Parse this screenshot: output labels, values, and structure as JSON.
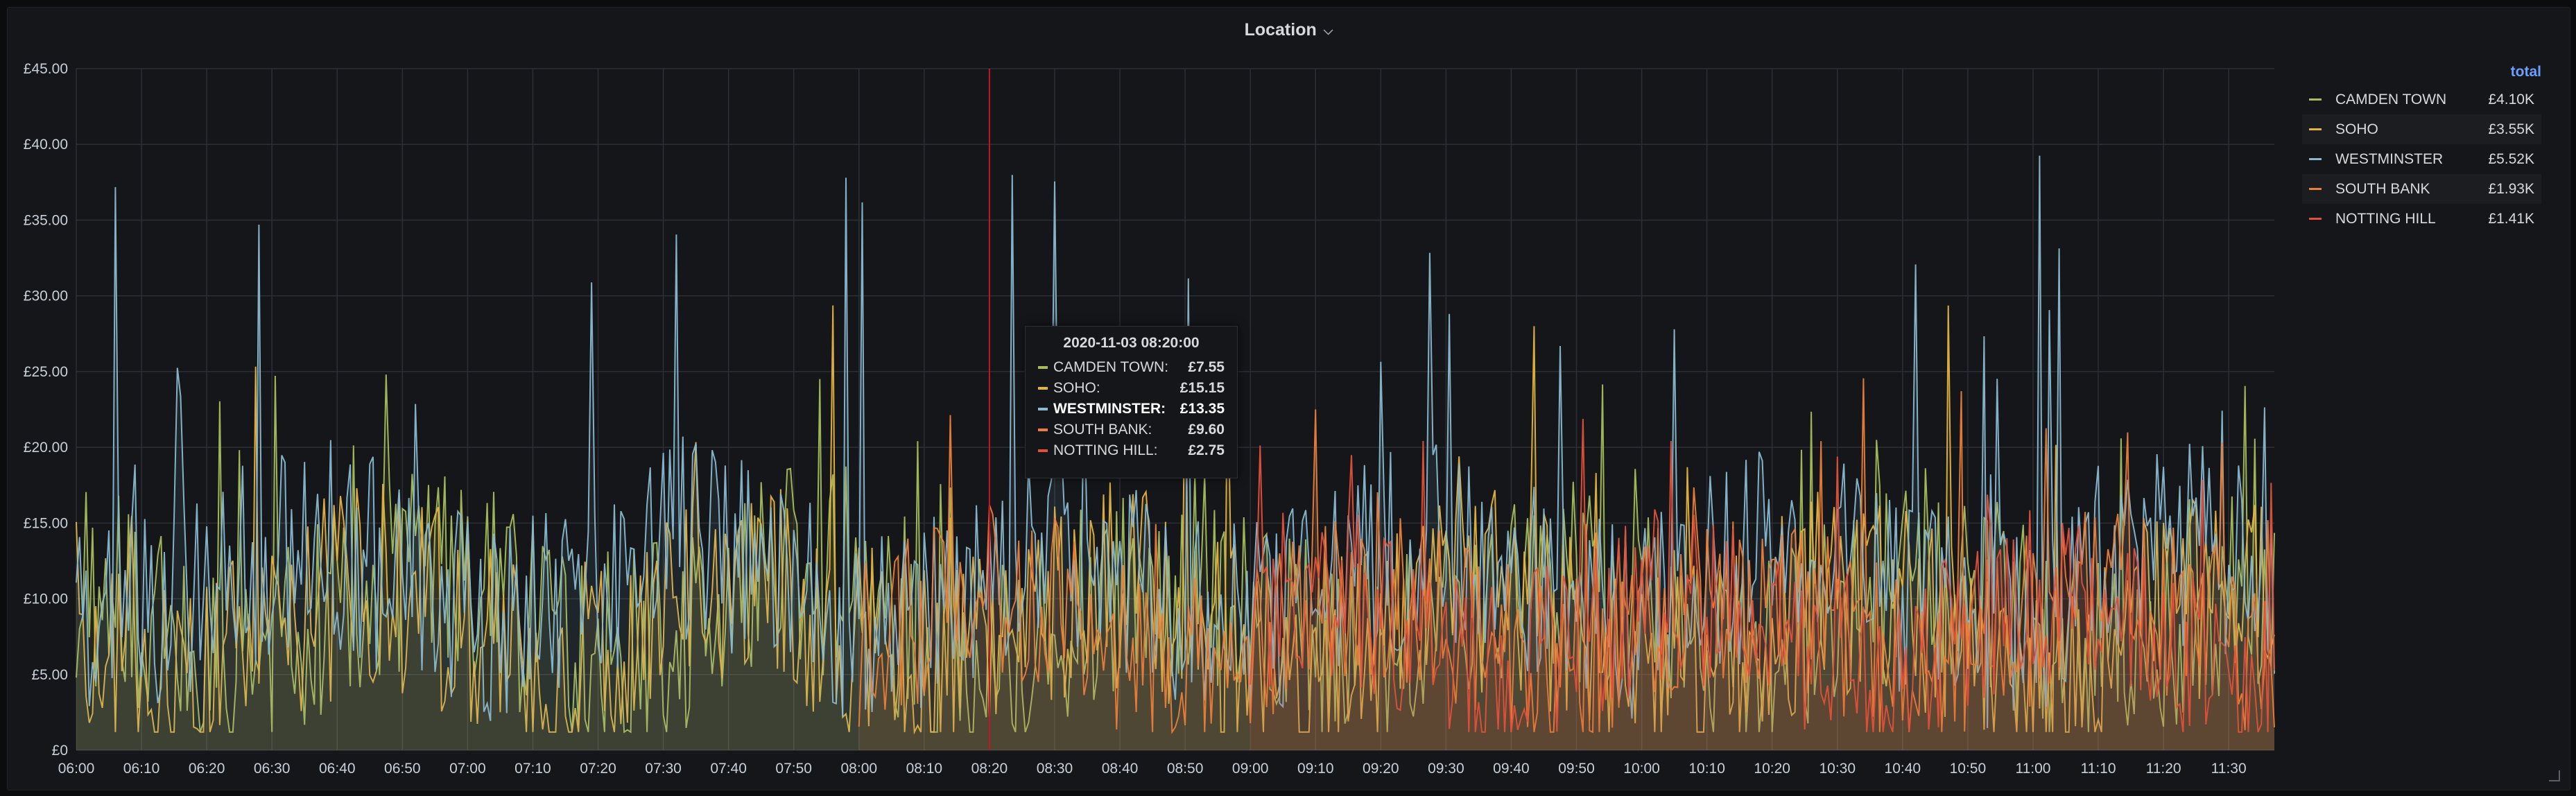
{
  "panel": {
    "title": "Location"
  },
  "tooltip": {
    "time": "2020-11-03 08:20:00",
    "rows": [
      {
        "name": "CAMDEN TOWN:",
        "value": "£7.55",
        "color": "#a6bd5d",
        "highlight": false
      },
      {
        "name": "SOHO:",
        "value": "£15.15",
        "color": "#e3b341",
        "highlight": false
      },
      {
        "name": "WESTMINSTER:",
        "value": "£13.35",
        "color": "#8ab8cf",
        "highlight": true
      },
      {
        "name": "SOUTH BANK:",
        "value": "£9.60",
        "color": "#ea7e3a",
        "highlight": false
      },
      {
        "name": "NOTTING HILL:",
        "value": "£2.75",
        "color": "#e0513b",
        "highlight": false
      }
    ]
  },
  "legend": {
    "header": "total",
    "items": [
      {
        "name": "CAMDEN TOWN",
        "total": "£4.10K",
        "color": "#a6bd5d"
      },
      {
        "name": "SOHO",
        "total": "£3.55K",
        "color": "#e3b341"
      },
      {
        "name": "WESTMINSTER",
        "total": "£5.52K",
        "color": "#8ab8cf"
      },
      {
        "name": "SOUTH BANK",
        "total": "£1.93K",
        "color": "#ea7e3a"
      },
      {
        "name": "NOTTING HILL",
        "total": "£1.41K",
        "color": "#e0513b"
      }
    ]
  },
  "chart_data": {
    "type": "line",
    "title": "Location",
    "x_start": "06:00",
    "x_end": "11:37",
    "x_ticks": [
      "06:00",
      "06:10",
      "06:20",
      "06:30",
      "06:40",
      "06:50",
      "07:00",
      "07:10",
      "07:20",
      "07:30",
      "07:40",
      "07:50",
      "08:00",
      "08:10",
      "08:20",
      "08:30",
      "08:40",
      "08:50",
      "09:00",
      "09:10",
      "09:20",
      "09:30",
      "09:40",
      "09:50",
      "10:00",
      "10:10",
      "10:20",
      "10:30",
      "10:40",
      "10:50",
      "11:00",
      "11:10",
      "11:20",
      "11:30"
    ],
    "y_ticks": [
      "£0",
      "£5.00",
      "£10.00",
      "£15.00",
      "£20.00",
      "£25.00",
      "£30.00",
      "£35.00",
      "£40.00",
      "£45.00"
    ],
    "ylim": [
      0,
      45
    ],
    "grid": true,
    "legend_position": "right",
    "cursor_time": "08:20",
    "series": [
      {
        "name": "CAMDEN TOWN",
        "color": "#a6bd5d",
        "start": "06:00",
        "end": "11:37",
        "base": 9,
        "amp": 7,
        "peak": 25
      },
      {
        "name": "SOHO",
        "color": "#e3b341",
        "start": "06:00",
        "end": "11:37",
        "base": 8,
        "amp": 7,
        "peak": 32
      },
      {
        "name": "WESTMINSTER",
        "color": "#8ab8cf",
        "start": "06:00",
        "end": "11:37",
        "base": 11,
        "amp": 7,
        "peak": 40
      },
      {
        "name": "SOUTH BANK",
        "color": "#ea7e3a",
        "start": "08:00",
        "end": "11:37",
        "base": 8,
        "amp": 6,
        "peak": 25
      },
      {
        "name": "NOTTING HILL",
        "color": "#e0513b",
        "start": "09:00",
        "end": "11:37",
        "base": 8,
        "amp": 6,
        "peak": 22
      }
    ]
  }
}
